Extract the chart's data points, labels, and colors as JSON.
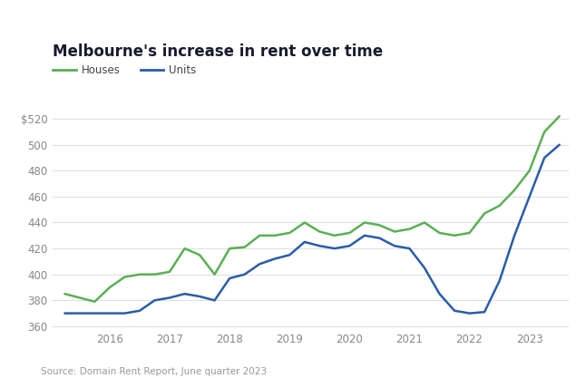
{
  "title": "Melbourne's increase in rent over time",
  "source": "Source: Domain Rent Report, June quarter 2023",
  "legend": [
    "Houses",
    "Units"
  ],
  "house_color": "#5ab054",
  "unit_color": "#2a5caa",
  "background_color": "#ffffff",
  "ylim": [
    358,
    530
  ],
  "yticks": [
    360,
    380,
    400,
    420,
    440,
    460,
    480,
    500,
    520
  ],
  "houses_x": [
    2015.25,
    2015.5,
    2015.75,
    2016.0,
    2016.25,
    2016.5,
    2016.75,
    2017.0,
    2017.25,
    2017.5,
    2017.75,
    2018.0,
    2018.25,
    2018.5,
    2018.75,
    2019.0,
    2019.25,
    2019.5,
    2019.75,
    2020.0,
    2020.25,
    2020.5,
    2020.75,
    2021.0,
    2021.25,
    2021.5,
    2021.75,
    2022.0,
    2022.25,
    2022.5,
    2022.75,
    2023.0,
    2023.25,
    2023.5
  ],
  "houses_y": [
    385,
    382,
    379,
    390,
    398,
    400,
    400,
    402,
    420,
    415,
    400,
    420,
    421,
    430,
    430,
    432,
    440,
    433,
    430,
    432,
    440,
    438,
    433,
    435,
    440,
    432,
    430,
    432,
    447,
    453,
    465,
    480,
    510,
    522
  ],
  "units_x": [
    2015.25,
    2015.5,
    2015.75,
    2016.0,
    2016.25,
    2016.5,
    2016.75,
    2017.0,
    2017.25,
    2017.5,
    2017.75,
    2018.0,
    2018.25,
    2018.5,
    2018.75,
    2019.0,
    2019.25,
    2019.5,
    2019.75,
    2020.0,
    2020.25,
    2020.5,
    2020.75,
    2021.0,
    2021.25,
    2021.5,
    2021.75,
    2022.0,
    2022.25,
    2022.5,
    2022.75,
    2023.0,
    2023.25,
    2023.5
  ],
  "units_y": [
    370,
    370,
    370,
    370,
    370,
    372,
    380,
    382,
    385,
    383,
    380,
    397,
    400,
    408,
    412,
    415,
    425,
    422,
    420,
    422,
    430,
    428,
    422,
    420,
    405,
    385,
    372,
    370,
    371,
    395,
    430,
    460,
    490,
    500
  ],
  "xticks": [
    2016,
    2017,
    2018,
    2019,
    2020,
    2021,
    2022,
    2023
  ],
  "xlim": [
    2015.05,
    2023.65
  ]
}
